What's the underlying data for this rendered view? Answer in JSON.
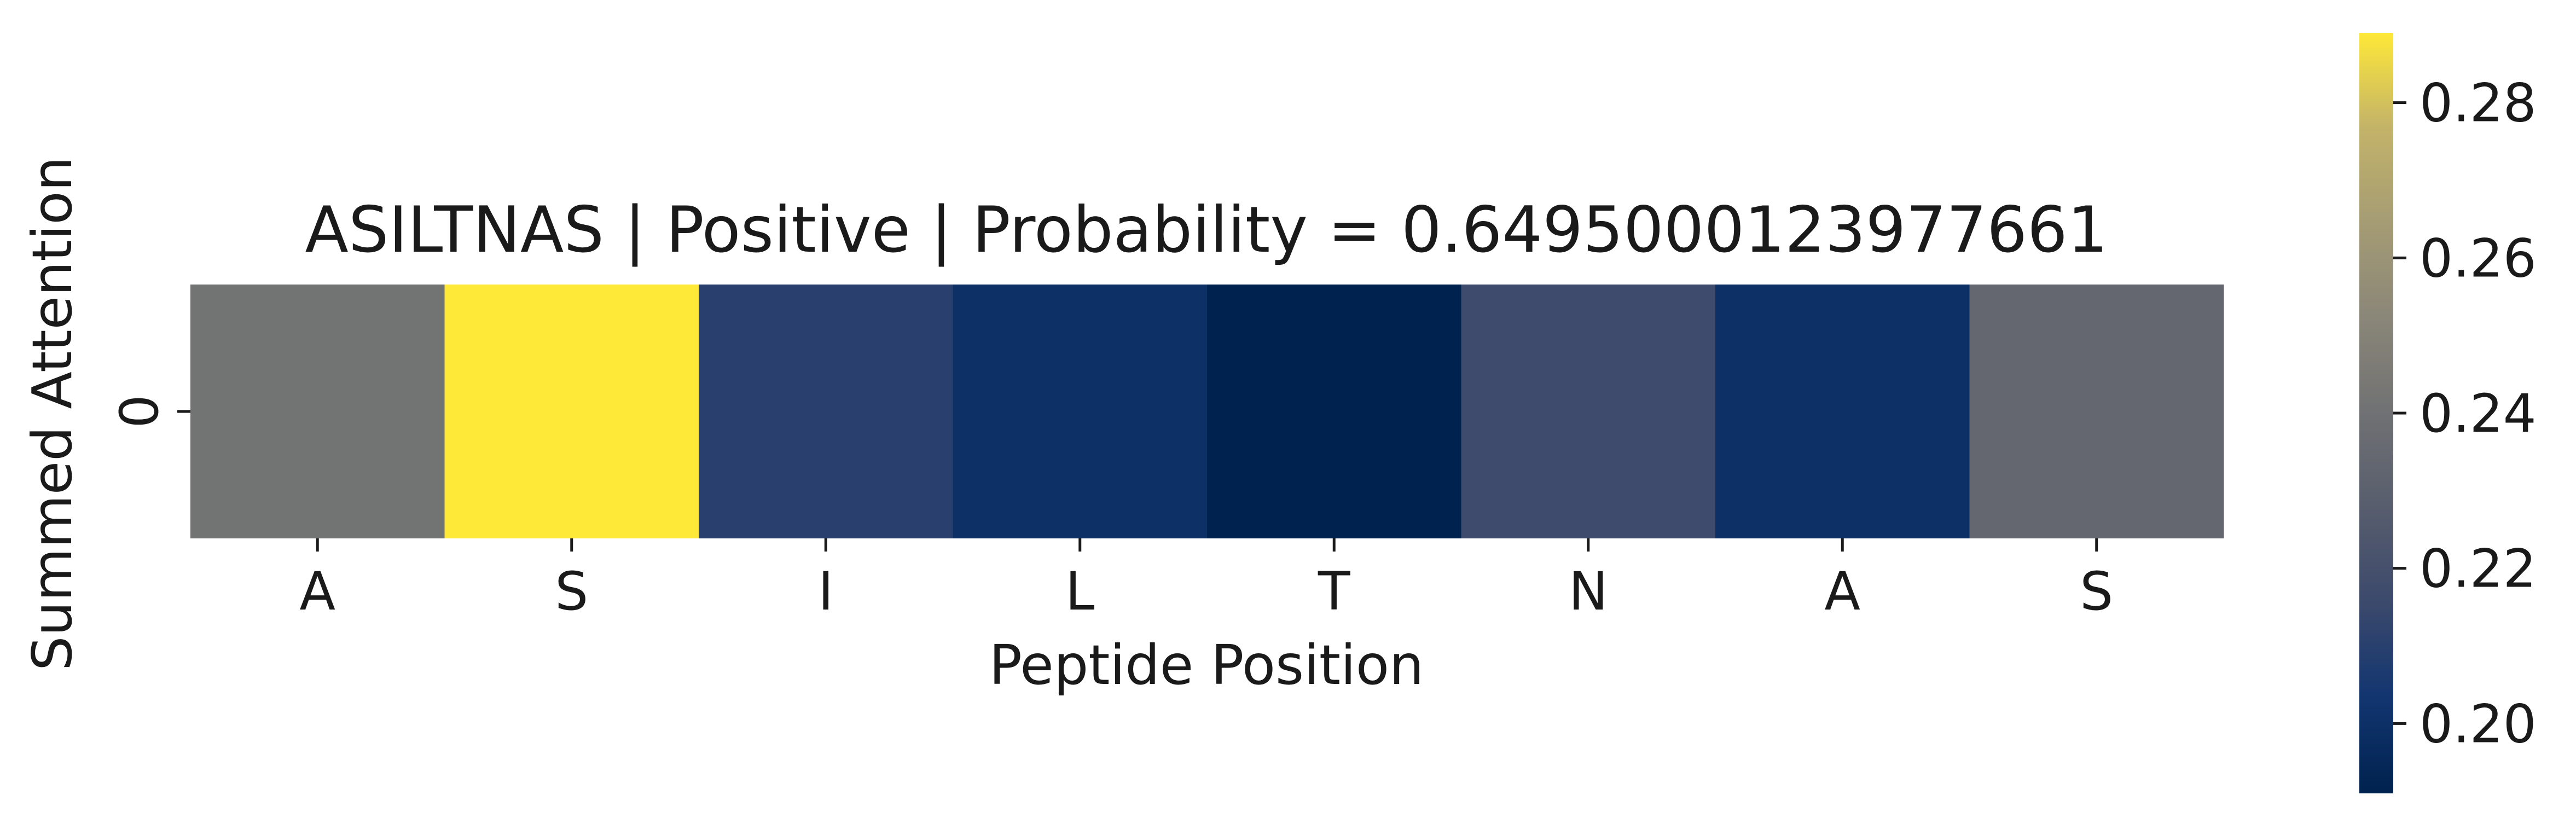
{
  "chart_data": {
    "type": "heatmap",
    "title": "ASILTNAS | Positive | Probability = 0.6495000123977661",
    "xlabel": "Peptide Position",
    "ylabel": "Summed Attention",
    "x_categories": [
      "A",
      "S",
      "I",
      "L",
      "T",
      "N",
      "A",
      "S"
    ],
    "y_categories": [
      "0"
    ],
    "values": [
      [
        0.241,
        0.289,
        0.21,
        0.2,
        0.191,
        0.217,
        0.2,
        0.234
      ]
    ],
    "colormap": "cividis",
    "colorbar": {
      "vmin": 0.191,
      "vmax": 0.289,
      "ticks": [
        0.2,
        0.22,
        0.24,
        0.26,
        0.28
      ],
      "tick_labels": [
        "0.20",
        "0.22",
        "0.24",
        "0.26",
        "0.28"
      ]
    }
  },
  "colors": {
    "cmap_low": "#00224e",
    "cmap_high": "#fee838"
  }
}
